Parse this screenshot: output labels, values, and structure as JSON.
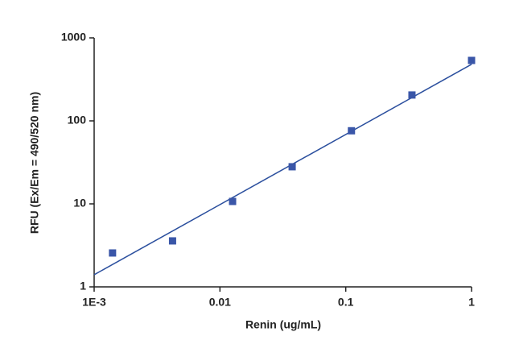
{
  "chart_data": {
    "type": "scatter",
    "x_label": "Renin (ug/mL)",
    "y_label": "RFU (Ex/Em = 490/520 nm)",
    "x": [
      0.0014,
      0.0042,
      0.0126,
      0.0375,
      0.111,
      0.336,
      1.0
    ],
    "values": [
      2.56,
      3.58,
      10.7,
      28,
      76,
      205,
      535
    ],
    "color": "#3a56a8",
    "fit_line": {
      "x": [
        0.001,
        1
      ],
      "y": [
        1.4,
        480
      ],
      "color": "#2b4f9e"
    },
    "xscale": "log",
    "yscale": "log",
    "xlim": [
      0.001,
      1
    ],
    "ylim": [
      1,
      1000
    ],
    "xticks": [
      {
        "value": 0.001,
        "label": "1E-3"
      },
      0.01,
      0.1,
      1
    ],
    "yticks": [
      1,
      10,
      100,
      1000
    ]
  }
}
